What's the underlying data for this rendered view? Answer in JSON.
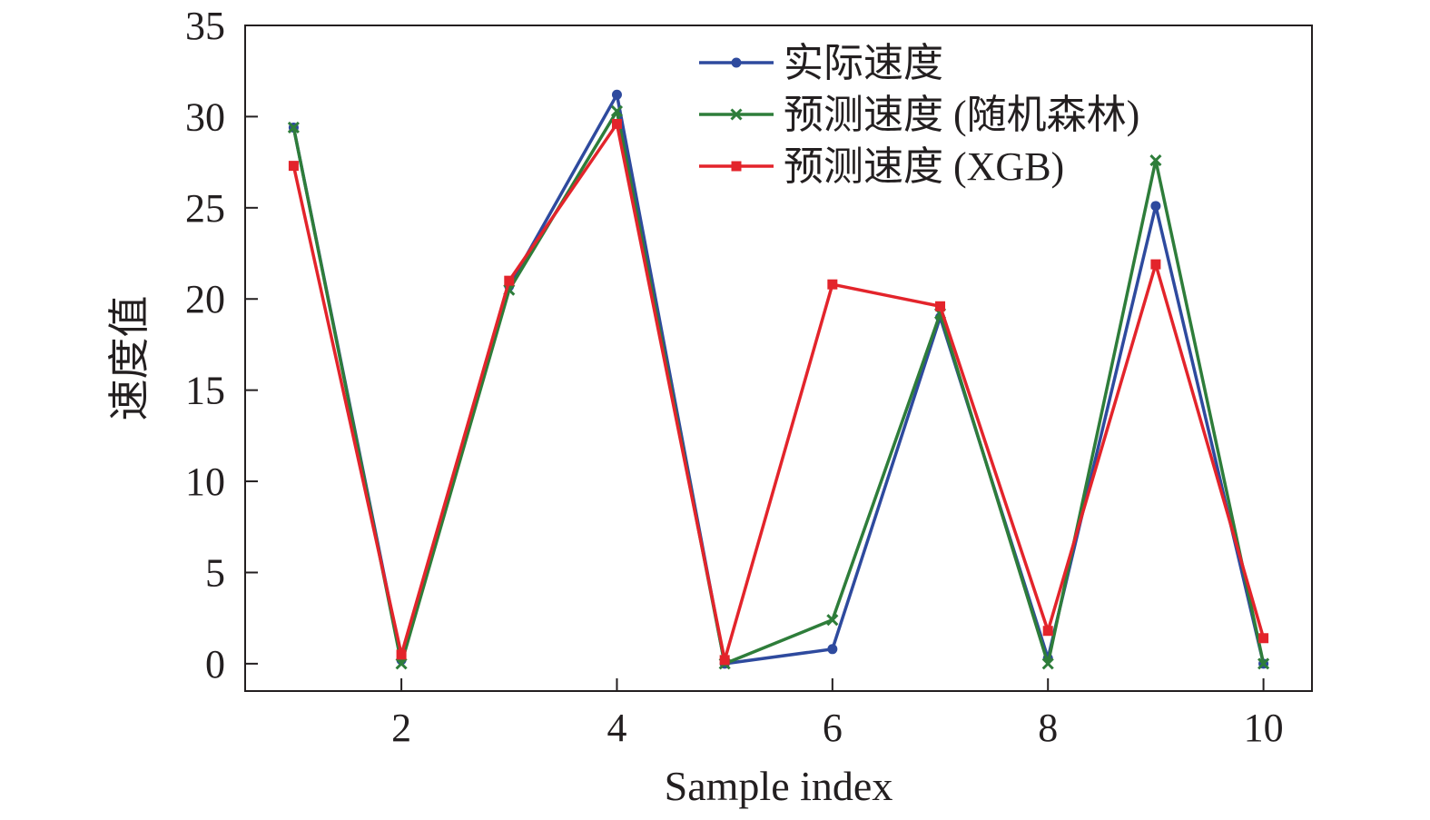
{
  "chart_data": {
    "type": "line",
    "title": "",
    "xlabel": "Sample index",
    "ylabel": "速度值",
    "xlim": [
      0.55,
      10.45
    ],
    "ylim": [
      -1.5,
      35
    ],
    "xticks": [
      2,
      4,
      6,
      8,
      10
    ],
    "yticks": [
      0,
      5,
      10,
      15,
      20,
      25,
      30,
      35
    ],
    "grid": false,
    "legend_position": "top-right",
    "x": [
      1,
      2,
      3,
      4,
      5,
      6,
      7,
      8,
      9,
      10
    ],
    "series": [
      {
        "name": "实际速度",
        "color": "#2e4a9e",
        "marker": "circle",
        "values": [
          29.4,
          0.2,
          20.7,
          31.2,
          0.0,
          0.8,
          19.0,
          0.3,
          25.1,
          0.0
        ]
      },
      {
        "name": "预测速度 (随机森林)",
        "color": "#2e7d3a",
        "marker": "x",
        "values": [
          29.4,
          0.0,
          20.5,
          30.3,
          0.0,
          2.4,
          19.2,
          0.0,
          27.6,
          0.0
        ]
      },
      {
        "name": "预测速度 (XGB)",
        "color": "#e3242b",
        "marker": "square",
        "values": [
          27.3,
          0.5,
          21.0,
          29.6,
          0.2,
          20.8,
          19.6,
          1.8,
          21.9,
          1.4
        ]
      }
    ]
  }
}
